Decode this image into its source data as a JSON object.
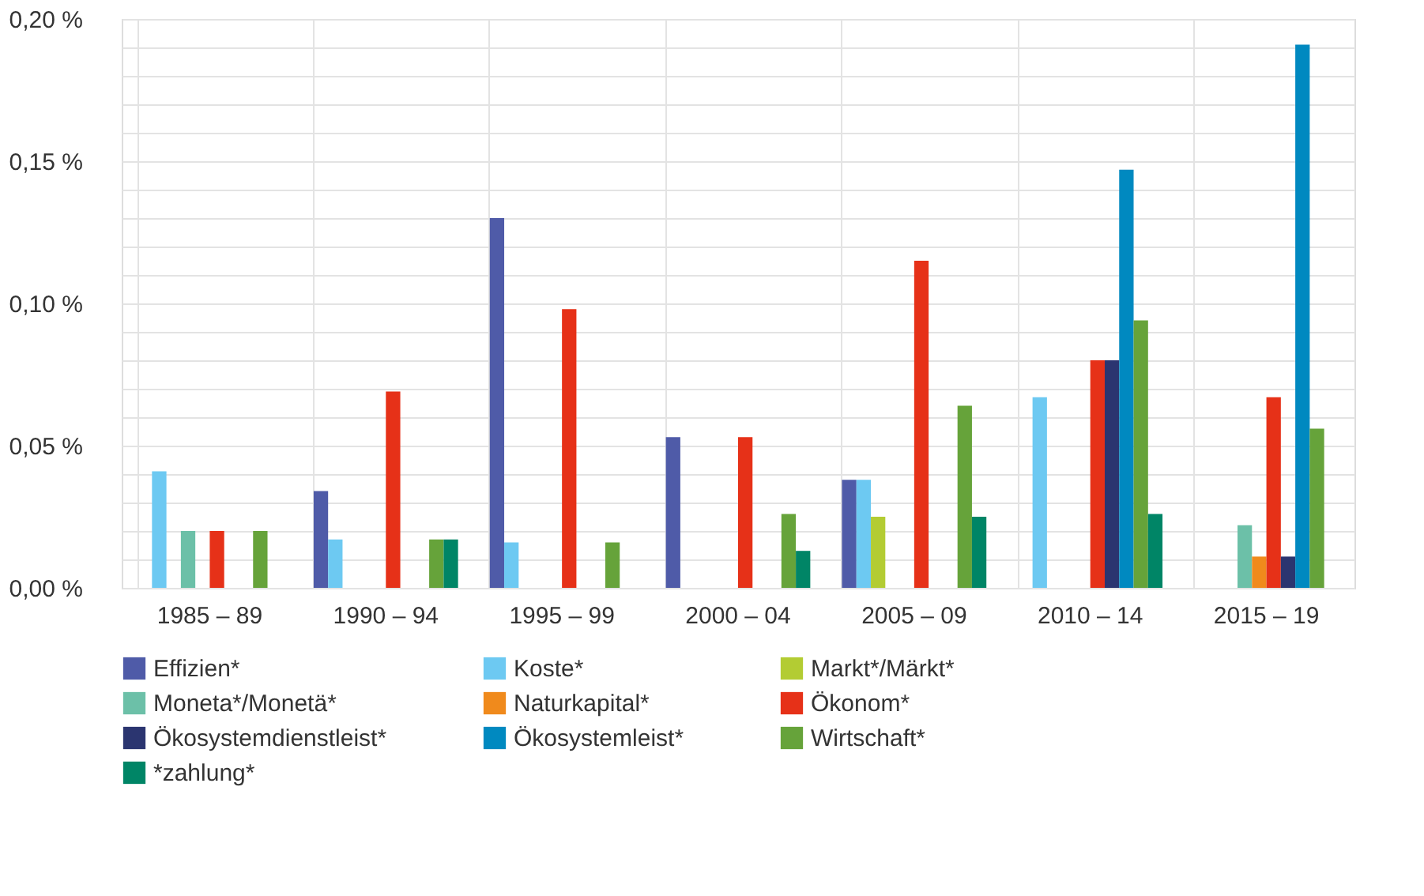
{
  "chart_data": {
    "type": "bar",
    "categories": [
      "1985 – 89",
      "1990 – 94",
      "1995 – 99",
      "2000 – 04",
      "2005 – 09",
      "2010 – 14",
      "2015 – 19"
    ],
    "series": [
      {
        "name": "Effizien*",
        "color": "#4f5ba8",
        "values": [
          null,
          0.034,
          0.13,
          0.053,
          0.038,
          null,
          null
        ]
      },
      {
        "name": "Koste*",
        "color": "#6dc9f2",
        "values": [
          0.041,
          0.017,
          0.016,
          null,
          0.038,
          0.067,
          null
        ]
      },
      {
        "name": "Markt*/Märkt*",
        "color": "#b3cc33",
        "values": [
          null,
          null,
          null,
          null,
          0.025,
          null,
          null
        ]
      },
      {
        "name": "Moneta*/Monetä*",
        "color": "#6cc0a8",
        "values": [
          0.02,
          null,
          null,
          null,
          null,
          null,
          0.022
        ]
      },
      {
        "name": "Naturkapital*",
        "color": "#f08a1c",
        "values": [
          null,
          null,
          null,
          null,
          null,
          null,
          0.011
        ]
      },
      {
        "name": "Ökonom*",
        "color": "#e63118",
        "values": [
          0.02,
          0.069,
          0.098,
          0.053,
          0.115,
          0.08,
          0.067
        ]
      },
      {
        "name": "Ökosystemdienstleist*",
        "color": "#2b3570",
        "values": [
          null,
          null,
          null,
          null,
          null,
          0.08,
          0.011
        ]
      },
      {
        "name": "Ökosystemleist*",
        "color": "#0089c0",
        "values": [
          null,
          null,
          null,
          null,
          null,
          0.147,
          0.191
        ]
      },
      {
        "name": "Wirtschaft*",
        "color": "#66a33a",
        "values": [
          0.02,
          0.017,
          0.016,
          0.026,
          0.064,
          0.094,
          0.056
        ]
      },
      {
        "name": "*zahlung*",
        "color": "#008566",
        "values": [
          null,
          0.017,
          null,
          0.013,
          0.025,
          0.026,
          null
        ]
      }
    ],
    "ylim": [
      0,
      0.2
    ],
    "yticks": [
      {
        "value": 0,
        "label": "0,00 %"
      },
      {
        "value": 0.01,
        "label": null
      },
      {
        "value": 0.02,
        "label": null
      },
      {
        "value": 0.03,
        "label": null
      },
      {
        "value": 0.04,
        "label": null
      },
      {
        "value": 0.05,
        "label": "0,05 %"
      },
      {
        "value": 0.06,
        "label": null
      },
      {
        "value": 0.07,
        "label": null
      },
      {
        "value": 0.08,
        "label": null
      },
      {
        "value": 0.09,
        "label": null
      },
      {
        "value": 0.1,
        "label": "0,10 %"
      },
      {
        "value": 0.11,
        "label": null
      },
      {
        "value": 0.12,
        "label": null
      },
      {
        "value": 0.13,
        "label": null
      },
      {
        "value": 0.14,
        "label": null
      },
      {
        "value": 0.15,
        "label": "0,15 %"
      },
      {
        "value": 0.16,
        "label": null
      },
      {
        "value": 0.17,
        "label": null
      },
      {
        "value": 0.18,
        "label": null
      },
      {
        "value": 0.19,
        "label": null
      },
      {
        "value": 0.2,
        "label": "0,20 %"
      }
    ],
    "grid": true,
    "legend": "bottom"
  }
}
